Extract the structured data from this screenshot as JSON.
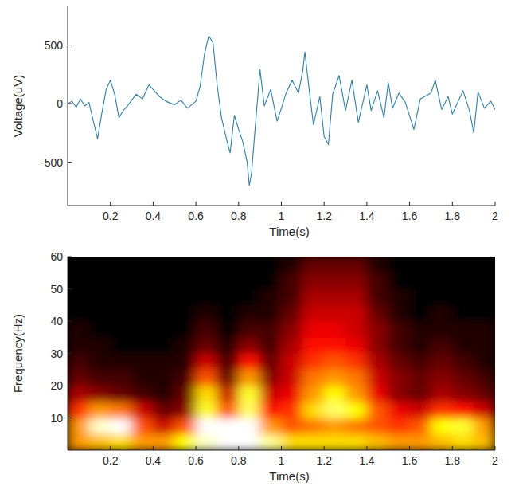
{
  "chart_data": [
    {
      "type": "line",
      "xlabel": "Time(s)",
      "ylabel": "Voltage(uV)",
      "color": "#2f7fa3",
      "x": [
        0,
        0.02,
        0.04,
        0.06,
        0.08,
        0.1,
        0.12,
        0.14,
        0.16,
        0.18,
        0.2,
        0.22,
        0.24,
        0.26,
        0.28,
        0.3,
        0.32,
        0.35,
        0.38,
        0.4,
        0.43,
        0.46,
        0.5,
        0.53,
        0.56,
        0.6,
        0.62,
        0.64,
        0.66,
        0.68,
        0.7,
        0.72,
        0.74,
        0.76,
        0.78,
        0.8,
        0.82,
        0.84,
        0.85,
        0.86,
        0.88,
        0.9,
        0.92,
        0.95,
        0.98,
        1.0,
        1.02,
        1.05,
        1.08,
        1.1,
        1.11,
        1.13,
        1.15,
        1.18,
        1.2,
        1.22,
        1.24,
        1.27,
        1.3,
        1.33,
        1.36,
        1.4,
        1.42,
        1.45,
        1.48,
        1.5,
        1.52,
        1.55,
        1.58,
        1.62,
        1.65,
        1.7,
        1.72,
        1.75,
        1.78,
        1.8,
        1.85,
        1.88,
        1.9,
        1.92,
        1.95,
        1.98,
        2.0
      ],
      "values": [
        0,
        20,
        -30,
        40,
        -20,
        10,
        -150,
        -300,
        -80,
        120,
        200,
        80,
        -120,
        -60,
        -20,
        30,
        80,
        40,
        160,
        120,
        60,
        20,
        -10,
        30,
        -40,
        20,
        150,
        420,
        580,
        520,
        150,
        -120,
        -280,
        -420,
        -100,
        -220,
        -330,
        -500,
        -700,
        -600,
        -150,
        290,
        -20,
        120,
        -150,
        -40,
        80,
        200,
        90,
        280,
        440,
        120,
        -180,
        60,
        -280,
        -350,
        80,
        240,
        -60,
        200,
        -160,
        160,
        -60,
        110,
        -120,
        180,
        -40,
        90,
        10,
        -220,
        40,
        90,
        200,
        -50,
        60,
        -90,
        110,
        -60,
        -250,
        100,
        -40,
        20,
        -50
      ],
      "xlim": [
        0,
        2
      ],
      "xticks": [
        0.2,
        0.4,
        0.6,
        0.8,
        1,
        1.2,
        1.4,
        1.6,
        1.8,
        2
      ],
      "ylim": [
        -870,
        830
      ],
      "yticks": [
        -500,
        0,
        500
      ]
    },
    {
      "type": "heatmap",
      "xlabel": "Time(s)",
      "ylabel": "Frequency(Hz)",
      "x_bins": [
        0,
        0.1,
        0.2,
        0.3,
        0.4,
        0.5,
        0.6,
        0.7,
        0.8,
        0.9,
        1.0,
        1.1,
        1.2,
        1.3,
        1.4,
        1.5,
        1.6,
        1.7,
        1.8,
        1.9,
        2.0
      ],
      "y_bins": [
        0,
        5,
        10,
        15,
        20,
        25,
        30,
        35,
        40,
        45,
        50,
        55,
        60
      ],
      "cells": [
        [
          0.6,
          0.65,
          0.7,
          0.6,
          0.6,
          0.75,
          0.95,
          1,
          1,
          0.9,
          0.7,
          0.7,
          0.7,
          0.7,
          0.65,
          0.6,
          0.6,
          0.65,
          0.7,
          0.65
        ],
        [
          0.6,
          0.95,
          1,
          0.5,
          0.3,
          0.5,
          1,
          1,
          1,
          0.6,
          0.5,
          0.55,
          0.6,
          0.55,
          0.5,
          0.45,
          0.5,
          0.75,
          0.8,
          0.6
        ],
        [
          0.45,
          0.6,
          0.55,
          0.3,
          0.15,
          0.2,
          0.8,
          0.5,
          0.85,
          0.4,
          0.45,
          0.7,
          0.85,
          0.75,
          0.5,
          0.35,
          0.3,
          0.45,
          0.4,
          0.3
        ],
        [
          0.25,
          0.2,
          0.15,
          0.1,
          0.05,
          0.15,
          0.7,
          0.3,
          0.8,
          0.3,
          0.35,
          0.6,
          0.75,
          0.6,
          0.35,
          0.2,
          0.15,
          0.25,
          0.2,
          0.15
        ],
        [
          0.15,
          0.1,
          0.1,
          0.05,
          0.05,
          0.1,
          0.5,
          0.15,
          0.6,
          0.2,
          0.3,
          0.55,
          0.6,
          0.55,
          0.3,
          0.2,
          0.15,
          0.2,
          0.15,
          0.1
        ],
        [
          0.1,
          0.05,
          0.05,
          0.05,
          0.05,
          0.05,
          0.3,
          0.1,
          0.4,
          0.15,
          0.3,
          0.45,
          0.5,
          0.45,
          0.25,
          0.15,
          0.1,
          0.15,
          0.1,
          0.05
        ],
        [
          0.05,
          0.05,
          0,
          0,
          0,
          0.05,
          0.15,
          0.05,
          0.2,
          0.1,
          0.25,
          0.4,
          0.4,
          0.35,
          0.2,
          0.1,
          0.05,
          0.1,
          0.05,
          0.05
        ],
        [
          0.05,
          0,
          0,
          0,
          0,
          0,
          0.1,
          0,
          0.1,
          0.1,
          0.2,
          0.35,
          0.35,
          0.3,
          0.2,
          0.1,
          0.05,
          0.05,
          0.05,
          0.05
        ],
        [
          0,
          0,
          0,
          0,
          0,
          0,
          0.05,
          0,
          0.05,
          0.05,
          0.15,
          0.3,
          0.3,
          0.3,
          0.15,
          0.05,
          0,
          0.05,
          0,
          0
        ],
        [
          0,
          0,
          0,
          0,
          0,
          0,
          0,
          0,
          0,
          0.05,
          0.1,
          0.25,
          0.25,
          0.25,
          0.1,
          0.05,
          0,
          0,
          0,
          0
        ],
        [
          0,
          0,
          0,
          0,
          0,
          0,
          0,
          0,
          0,
          0,
          0.1,
          0.2,
          0.2,
          0.2,
          0.1,
          0,
          0,
          0,
          0,
          0
        ],
        [
          0,
          0,
          0,
          0,
          0,
          0,
          0,
          0,
          0,
          0,
          0.05,
          0.15,
          0.15,
          0.15,
          0.05,
          0,
          0,
          0,
          0,
          0
        ]
      ],
      "xlim": [
        0,
        2
      ],
      "xticks": [
        0.2,
        0.4,
        0.6,
        0.8,
        1,
        1.2,
        1.4,
        1.6,
        1.8,
        2
      ],
      "ylim": [
        0,
        60
      ],
      "yticks": [
        10,
        20,
        30,
        40,
        50,
        60
      ]
    }
  ]
}
